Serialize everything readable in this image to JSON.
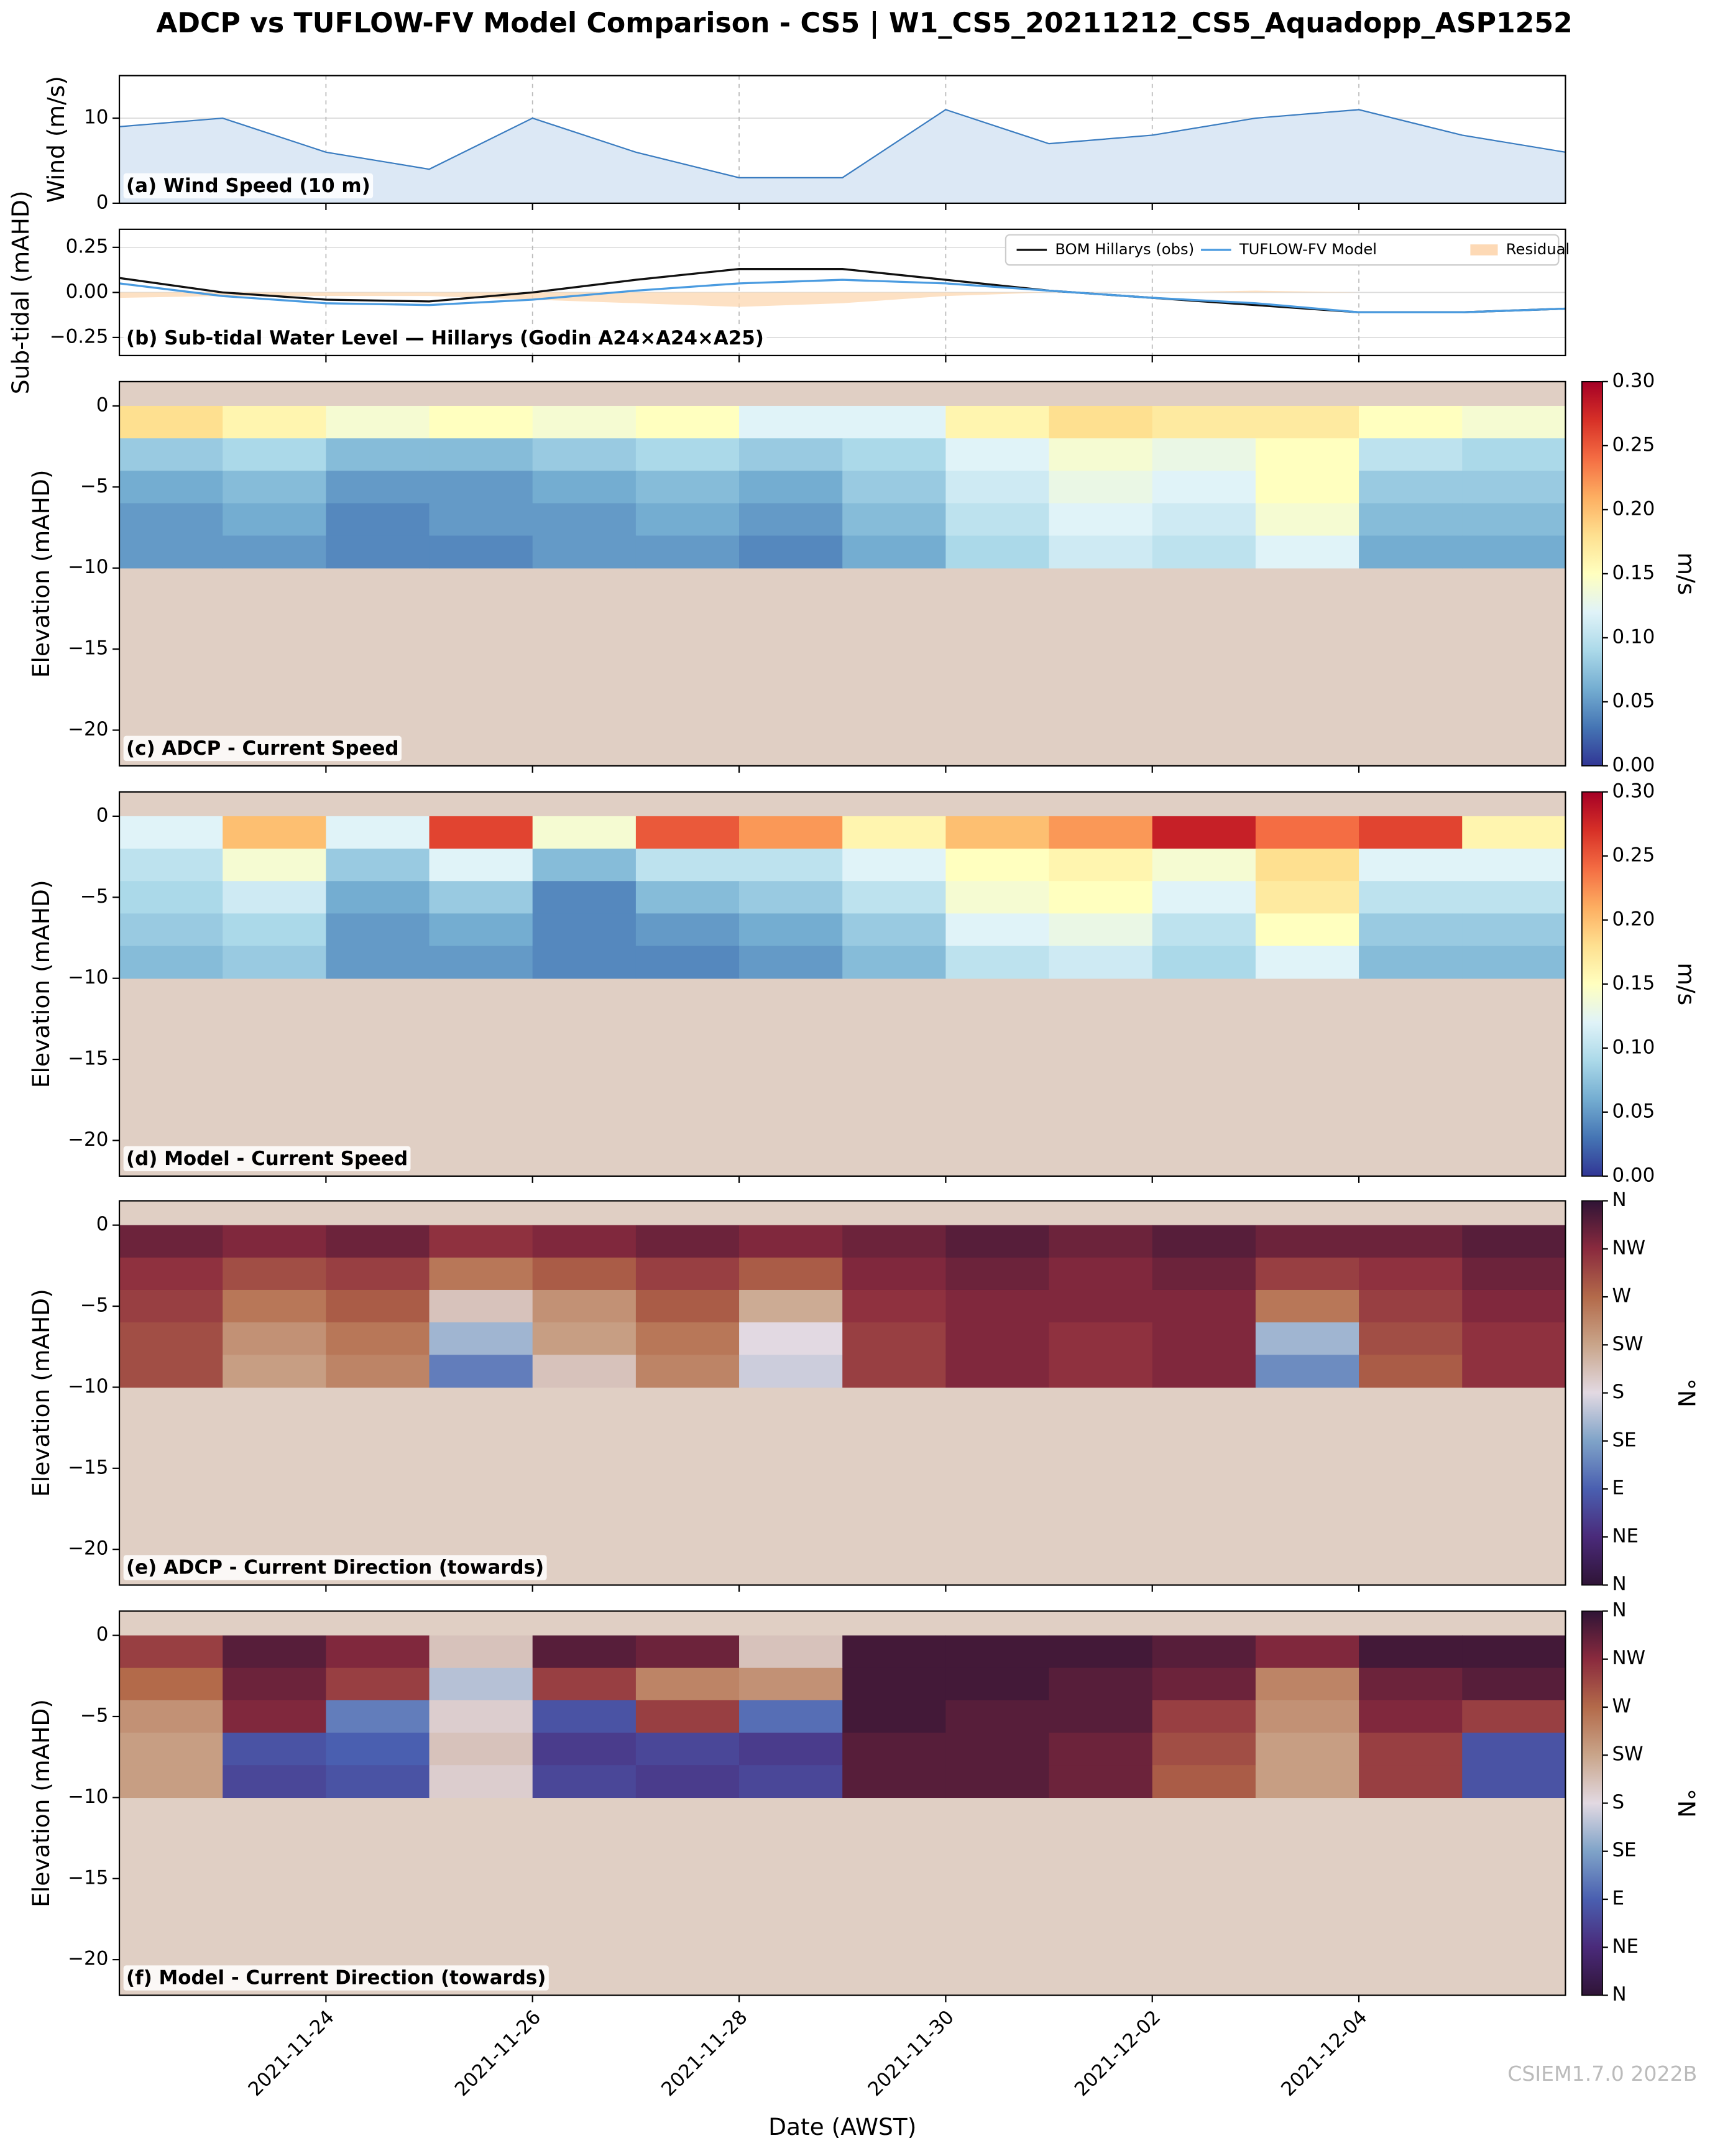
{
  "title": "ADCP vs TUFLOW-FV Model Comparison - CS5 | W1_CS5_20211212_CS5_Aquadopp_ASP1252",
  "xlabel": "Date (AWST)",
  "footer": "CSIEM1.7.0 2022B",
  "xlim": [
    "2021-11-22",
    "2021-12-06"
  ],
  "xticks": [
    "2021-11-24",
    "2021-11-26",
    "2021-11-28",
    "2021-11-30",
    "2021-12-02",
    "2021-12-04"
  ],
  "chart_data": [
    {
      "type": "area",
      "title": "(a) Wind Speed (10 m)",
      "ylabel": "Wind (m/s)",
      "x": [
        "2021-11-22",
        "2021-11-23",
        "2021-11-24",
        "2021-11-25",
        "2021-11-26",
        "2021-11-27",
        "2021-11-28",
        "2021-11-29",
        "2021-11-30",
        "2021-12-01",
        "2021-12-02",
        "2021-12-03",
        "2021-12-04",
        "2021-12-05",
        "2021-12-06"
      ],
      "values": [
        9,
        10,
        6,
        4,
        10,
        6,
        3,
        3,
        11,
        7,
        8,
        10,
        11,
        8,
        6
      ],
      "color": "#3a7cc0",
      "fill": "#dce8f5",
      "ylim": [
        0,
        15
      ],
      "yticks": [
        0,
        10
      ],
      "grid": true
    },
    {
      "type": "line",
      "title": "(b) Sub-tidal Water Level — Hillarys (Godin A24×A24×A25)",
      "ylabel": "Sub-tidal (mAHD)",
      "x": [
        "2021-11-22",
        "2021-11-23",
        "2021-11-24",
        "2021-11-25",
        "2021-11-26",
        "2021-11-27",
        "2021-11-28",
        "2021-11-29",
        "2021-11-30",
        "2021-12-01",
        "2021-12-02",
        "2021-12-03",
        "2021-12-04",
        "2021-12-05",
        "2021-12-06"
      ],
      "series": [
        {
          "name": "BOM Hillarys (obs)",
          "color": "#111111",
          "style": "line",
          "values": [
            0.08,
            0.0,
            -0.04,
            -0.05,
            0.0,
            0.07,
            0.13,
            0.13,
            0.07,
            0.01,
            -0.03,
            -0.07,
            -0.11,
            -0.11,
            -0.09
          ]
        },
        {
          "name": "TUFLOW-FV Model",
          "color": "#4a9be0",
          "style": "line",
          "values": [
            0.05,
            -0.02,
            -0.06,
            -0.07,
            -0.04,
            0.01,
            0.05,
            0.07,
            0.05,
            0.01,
            -0.03,
            -0.06,
            -0.11,
            -0.11,
            -0.09
          ]
        },
        {
          "name": "Residual",
          "color": "#fdd9b5",
          "style": "fill",
          "values": [
            -0.03,
            -0.02,
            -0.02,
            -0.02,
            -0.04,
            -0.06,
            -0.08,
            -0.06,
            -0.02,
            0,
            0,
            0.01,
            0,
            0,
            0
          ]
        }
      ],
      "ylim": [
        -0.35,
        0.35
      ],
      "yticks": [
        0.25,
        {
          "value": 0,
          "label": "0.00"
        },
        {
          "value": -0.25,
          "label": "−0.25"
        }
      ],
      "grid": true,
      "legend": "upper right"
    },
    {
      "type": "heatmap",
      "title": "(c) ADCP - Current Speed",
      "ylabel": "Elevation (mAHD)",
      "x_edges": [
        "2021-11-22",
        "2021-11-23",
        "2021-11-24",
        "2021-11-25",
        "2021-11-26",
        "2021-11-27",
        "2021-11-28",
        "2021-11-29",
        "2021-11-30",
        "2021-12-01",
        "2021-12-02",
        "2021-12-03",
        "2021-12-04",
        "2021-12-05",
        "2021-12-06"
      ],
      "y_edges": [
        0,
        -2,
        -4,
        -6,
        -8,
        -10
      ],
      "values": [
        [
          0.18,
          0.16,
          0.14,
          0.15,
          0.14,
          0.15,
          0.12,
          0.12,
          0.16,
          0.18,
          0.17,
          0.17,
          0.15,
          0.14
        ],
        [
          0.08,
          0.09,
          0.07,
          0.07,
          0.08,
          0.09,
          0.08,
          0.09,
          0.12,
          0.14,
          0.13,
          0.15,
          0.1,
          0.09
        ],
        [
          0.06,
          0.07,
          0.05,
          0.05,
          0.06,
          0.07,
          0.06,
          0.08,
          0.11,
          0.13,
          0.12,
          0.15,
          0.08,
          0.08
        ],
        [
          0.05,
          0.06,
          0.04,
          0.05,
          0.05,
          0.06,
          0.05,
          0.07,
          0.1,
          0.12,
          0.11,
          0.14,
          0.07,
          0.07
        ],
        [
          0.05,
          0.05,
          0.04,
          0.04,
          0.05,
          0.05,
          0.04,
          0.06,
          0.09,
          0.11,
          0.1,
          0.12,
          0.06,
          0.06
        ]
      ],
      "ylim": [
        -22.2,
        1.5
      ],
      "yticks": [
        0,
        {
          "value": -5,
          "label": "−5"
        },
        {
          "value": -10,
          "label": "−10"
        },
        {
          "value": -15,
          "label": "−15"
        },
        {
          "value": -20,
          "label": "−20"
        }
      ],
      "colormap": [
        "#313695",
        "#4575b4",
        "#74add1",
        "#abd9e9",
        "#e0f3f8",
        "#ffffbf",
        "#fee090",
        "#fdae61",
        "#f46d43",
        "#d73027",
        "#a50026"
      ],
      "clim": [
        0,
        0.3
      ],
      "cticks": [
        {
          "value": 0,
          "label": "0.00"
        },
        {
          "value": 0.05,
          "label": "0.05"
        },
        {
          "value": 0.1,
          "label": "0.10"
        },
        {
          "value": 0.15,
          "label": "0.15"
        },
        {
          "value": 0.2,
          "label": "0.20"
        },
        {
          "value": 0.25,
          "label": "0.25"
        },
        {
          "value": 0.3,
          "label": "0.30"
        }
      ],
      "clabel": "m/s",
      "background": "#e0cfc4"
    },
    {
      "type": "heatmap",
      "title": "(d) Model - Current Speed",
      "ylabel": "Elevation (mAHD)",
      "x_edges": [
        "2021-11-22",
        "2021-11-23",
        "2021-11-24",
        "2021-11-25",
        "2021-11-26",
        "2021-11-27",
        "2021-11-28",
        "2021-11-29",
        "2021-11-30",
        "2021-12-01",
        "2021-12-02",
        "2021-12-03",
        "2021-12-04",
        "2021-12-05",
        "2021-12-06"
      ],
      "y_edges": [
        0,
        -2,
        -4,
        -6,
        -8,
        -10
      ],
      "values": [
        [
          0.12,
          0.2,
          0.12,
          0.26,
          0.14,
          0.25,
          0.22,
          0.16,
          0.2,
          0.22,
          0.28,
          0.24,
          0.26,
          0.16
        ],
        [
          0.1,
          0.14,
          0.08,
          0.12,
          0.07,
          0.1,
          0.1,
          0.12,
          0.15,
          0.16,
          0.14,
          0.18,
          0.12,
          0.12
        ],
        [
          0.09,
          0.11,
          0.06,
          0.08,
          0.04,
          0.07,
          0.08,
          0.1,
          0.14,
          0.15,
          0.12,
          0.17,
          0.1,
          0.1
        ],
        [
          0.08,
          0.09,
          0.05,
          0.06,
          0.04,
          0.05,
          0.06,
          0.08,
          0.12,
          0.13,
          0.1,
          0.15,
          0.08,
          0.08
        ],
        [
          0.07,
          0.08,
          0.05,
          0.05,
          0.04,
          0.04,
          0.05,
          0.07,
          0.1,
          0.11,
          0.09,
          0.12,
          0.07,
          0.07
        ]
      ],
      "ylim": [
        -22.2,
        1.5
      ],
      "yticks": [
        0,
        {
          "value": -5,
          "label": "−5"
        },
        {
          "value": -10,
          "label": "−10"
        },
        {
          "value": -15,
          "label": "−15"
        },
        {
          "value": -20,
          "label": "−20"
        }
      ],
      "colormap": [
        "#313695",
        "#4575b4",
        "#74add1",
        "#abd9e9",
        "#e0f3f8",
        "#ffffbf",
        "#fee090",
        "#fdae61",
        "#f46d43",
        "#d73027",
        "#a50026"
      ],
      "clim": [
        0,
        0.3
      ],
      "cticks": [
        {
          "value": 0,
          "label": "0.00"
        },
        {
          "value": 0.05,
          "label": "0.05"
        },
        {
          "value": 0.1,
          "label": "0.10"
        },
        {
          "value": 0.15,
          "label": "0.15"
        },
        {
          "value": 0.2,
          "label": "0.20"
        },
        {
          "value": 0.25,
          "label": "0.25"
        },
        {
          "value": 0.3,
          "label": "0.30"
        }
      ],
      "clabel": "m/s",
      "background": "#e0cfc4"
    },
    {
      "type": "heatmap",
      "title": "(e) ADCP - Current Direction (towards)",
      "ylabel": "Elevation (mAHD)",
      "x_edges": [
        "2021-11-22",
        "2021-11-23",
        "2021-11-24",
        "2021-11-25",
        "2021-11-26",
        "2021-11-27",
        "2021-11-28",
        "2021-11-29",
        "2021-11-30",
        "2021-12-01",
        "2021-12-02",
        "2021-12-03",
        "2021-12-04",
        "2021-12-05",
        "2021-12-06"
      ],
      "y_edges": [
        0,
        -2,
        -4,
        -6,
        -8,
        -10
      ],
      "values": [
        [
          330,
          320,
          330,
          310,
          320,
          330,
          320,
          330,
          340,
          330,
          340,
          330,
          330,
          340
        ],
        [
          310,
          290,
          300,
          260,
          280,
          300,
          280,
          320,
          330,
          320,
          330,
          300,
          310,
          330
        ],
        [
          300,
          260,
          280,
          200,
          240,
          280,
          220,
          310,
          320,
          320,
          320,
          260,
          300,
          320
        ],
        [
          290,
          240,
          260,
          150,
          230,
          260,
          180,
          300,
          320,
          310,
          320,
          150,
          290,
          310
        ],
        [
          290,
          230,
          250,
          110,
          200,
          250,
          170,
          300,
          320,
          310,
          320,
          120,
          280,
          310
        ]
      ],
      "ylim": [
        -22.2,
        1.5
      ],
      "yticks": [
        0,
        {
          "value": -5,
          "label": "−5"
        },
        {
          "value": -10,
          "label": "−10"
        },
        {
          "value": -15,
          "label": "−15"
        },
        {
          "value": -20,
          "label": "−20"
        }
      ],
      "colormap": [
        "#2f1436",
        "#4a2a7a",
        "#4a5fb0",
        "#7fa3c8",
        "#e2d9e2",
        "#c9a58a",
        "#b36a4a",
        "#8a2a3e",
        "#2f1436"
      ],
      "clim": [
        0,
        360
      ],
      "cticks": [
        {
          "value": 0,
          "label": "N"
        },
        {
          "value": 45,
          "label": "NE"
        },
        {
          "value": 90,
          "label": "E"
        },
        {
          "value": 135,
          "label": "SE"
        },
        {
          "value": 180,
          "label": "S"
        },
        {
          "value": 225,
          "label": "SW"
        },
        {
          "value": 270,
          "label": "W"
        },
        {
          "value": 315,
          "label": "NW"
        },
        {
          "value": 360,
          "label": "N"
        }
      ],
      "clabel": "°N",
      "background": "#e0cfc4"
    },
    {
      "type": "heatmap",
      "title": "(f) Model - Current Direction (towards)",
      "ylabel": "Elevation (mAHD)",
      "x_edges": [
        "2021-11-22",
        "2021-11-23",
        "2021-11-24",
        "2021-11-25",
        "2021-11-26",
        "2021-11-27",
        "2021-11-28",
        "2021-11-29",
        "2021-11-30",
        "2021-12-01",
        "2021-12-02",
        "2021-12-03",
        "2021-12-04",
        "2021-12-05",
        "2021-12-06"
      ],
      "y_edges": [
        0,
        -2,
        -4,
        -6,
        -8,
        -10
      ],
      "values": [
        [
          300,
          340,
          320,
          200,
          340,
          330,
          200,
          350,
          350,
          350,
          340,
          320,
          350,
          350
        ],
        [
          270,
          330,
          300,
          160,
          300,
          250,
          240,
          350,
          350,
          340,
          330,
          250,
          330,
          340
        ],
        [
          240,
          320,
          110,
          190,
          80,
          300,
          100,
          350,
          340,
          340,
          300,
          240,
          320,
          300
        ],
        [
          230,
          80,
          90,
          200,
          60,
          70,
          60,
          340,
          340,
          330,
          290,
          230,
          300,
          80
        ],
        [
          230,
          70,
          80,
          190,
          70,
          60,
          70,
          340,
          340,
          330,
          280,
          230,
          300,
          80
        ]
      ],
      "ylim": [
        -22.2,
        1.5
      ],
      "yticks": [
        0,
        {
          "value": -5,
          "label": "−5"
        },
        {
          "value": -10,
          "label": "−10"
        },
        {
          "value": -15,
          "label": "−15"
        },
        {
          "value": -20,
          "label": "−20"
        }
      ],
      "colormap": [
        "#2f1436",
        "#4a2a7a",
        "#4a5fb0",
        "#7fa3c8",
        "#e2d9e2",
        "#c9a58a",
        "#b36a4a",
        "#8a2a3e",
        "#2f1436"
      ],
      "clim": [
        0,
        360
      ],
      "cticks": [
        {
          "value": 0,
          "label": "N"
        },
        {
          "value": 45,
          "label": "NE"
        },
        {
          "value": 90,
          "label": "E"
        },
        {
          "value": 135,
          "label": "SE"
        },
        {
          "value": 180,
          "label": "S"
        },
        {
          "value": 225,
          "label": "SW"
        },
        {
          "value": 270,
          "label": "W"
        },
        {
          "value": 315,
          "label": "NW"
        },
        {
          "value": 360,
          "label": "N"
        }
      ],
      "clabel": "°N",
      "background": "#e0cfc4"
    }
  ]
}
